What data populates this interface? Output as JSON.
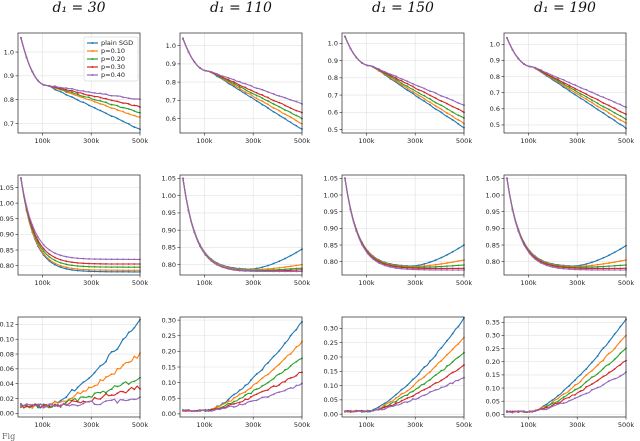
{
  "figure": {
    "column_titles": [
      "d₁ = 30",
      "d₁ = 110",
      "d₁ = 150",
      "d₁ = 190"
    ],
    "x_tick_labels": [
      "100k",
      "300k",
      "500k"
    ],
    "caption_fragment": "Fig",
    "legend": {
      "entries": [
        "plain SGD",
        "p=0.10",
        "p=0.20",
        "p=0.30",
        "p=0.40"
      ],
      "colors": [
        "#1f77b4",
        "#ff7f0e",
        "#2ca02c",
        "#d62728",
        "#9467bd"
      ]
    }
  },
  "chart_data": [
    {
      "type": "line",
      "row": 1,
      "col": 1,
      "title": "d₁ = 30",
      "x": [
        0,
        500000
      ],
      "ylim": [
        0.66,
        1.08
      ],
      "yticks": [
        0.7,
        0.8,
        0.9,
        1.0
      ],
      "xticks": [
        100000,
        300000,
        500000
      ],
      "legend": "top-right",
      "series": [
        {
          "name": "plain SGD",
          "end": 0.675
        },
        {
          "name": "p=0.10",
          "end": 0.725
        },
        {
          "name": "p=0.20",
          "end": 0.745
        },
        {
          "name": "p=0.30",
          "end": 0.77
        },
        {
          "name": "p=0.40",
          "end": 0.8
        }
      ],
      "start": 1.06,
      "knee": 0.86
    },
    {
      "type": "line",
      "row": 1,
      "col": 2,
      "title": "d₁ = 110",
      "x": [
        0,
        500000
      ],
      "ylim": [
        0.52,
        1.07
      ],
      "yticks": [
        0.6,
        0.7,
        0.8,
        0.9,
        1.0
      ],
      "xticks": [
        100000,
        300000,
        500000
      ],
      "series": [
        {
          "name": "plain SGD",
          "end": 0.54
        },
        {
          "name": "p=0.10",
          "end": 0.57
        },
        {
          "name": "p=0.20",
          "end": 0.6
        },
        {
          "name": "p=0.30",
          "end": 0.63
        },
        {
          "name": "p=0.40",
          "end": 0.68
        }
      ],
      "start": 1.04,
      "knee": 0.86
    },
    {
      "type": "line",
      "row": 1,
      "col": 3,
      "title": "d₁ = 150",
      "x": [
        0,
        500000
      ],
      "ylim": [
        0.48,
        1.06
      ],
      "yticks": [
        0.5,
        0.6,
        0.7,
        0.8,
        0.9,
        1.0
      ],
      "xticks": [
        100000,
        300000,
        500000
      ],
      "series": [
        {
          "name": "plain SGD",
          "end": 0.51
        },
        {
          "name": "p=0.10",
          "end": 0.535
        },
        {
          "name": "p=0.20",
          "end": 0.565
        },
        {
          "name": "p=0.30",
          "end": 0.6
        },
        {
          "name": "p=0.40",
          "end": 0.64
        }
      ],
      "start": 1.04,
      "knee": 0.87
    },
    {
      "type": "line",
      "row": 1,
      "col": 4,
      "title": "d₁ = 190",
      "x": [
        0,
        500000
      ],
      "ylim": [
        0.45,
        1.07
      ],
      "yticks": [
        0.5,
        0.6,
        0.7,
        0.8,
        0.9,
        1.0
      ],
      "xticks": [
        100000,
        300000,
        500000
      ],
      "series": [
        {
          "name": "plain SGD",
          "end": 0.48
        },
        {
          "name": "p=0.10",
          "end": 0.51
        },
        {
          "name": "p=0.20",
          "end": 0.535
        },
        {
          "name": "p=0.30",
          "end": 0.565
        },
        {
          "name": "p=0.40",
          "end": 0.61
        }
      ],
      "start": 1.04,
      "knee": 0.86
    },
    {
      "type": "line",
      "row": 2,
      "col": 1,
      "x": [
        0,
        500000
      ],
      "ylim": [
        0.77,
        1.09
      ],
      "yticks": [
        0.8,
        0.85,
        0.9,
        0.95,
        1.0,
        1.05
      ],
      "xticks": [
        100000,
        300000,
        500000
      ],
      "series": [
        {
          "name": "plain SGD",
          "end": 0.78,
          "bump": 0
        },
        {
          "name": "p=0.10",
          "end": 0.785,
          "bump": 0
        },
        {
          "name": "p=0.20",
          "end": 0.795,
          "bump": 0
        },
        {
          "name": "p=0.30",
          "end": 0.805,
          "bump": 0
        },
        {
          "name": "p=0.40",
          "end": 0.82,
          "bump": 0
        }
      ],
      "start": 1.08
    },
    {
      "type": "line",
      "row": 2,
      "col": 2,
      "x": [
        0,
        500000
      ],
      "ylim": [
        0.77,
        1.06
      ],
      "yticks": [
        0.8,
        0.85,
        0.9,
        0.95,
        1.0,
        1.05
      ],
      "xticks": [
        100000,
        300000,
        500000
      ],
      "series": [
        {
          "name": "plain SGD",
          "end": 0.845,
          "bump": 1
        },
        {
          "name": "p=0.10",
          "end": 0.8,
          "bump": 1
        },
        {
          "name": "p=0.20",
          "end": 0.79,
          "bump": 1
        },
        {
          "name": "p=0.30",
          "end": 0.785,
          "bump": 1
        },
        {
          "name": "p=0.40",
          "end": 0.78,
          "bump": 0
        }
      ],
      "start": 1.05
    },
    {
      "type": "line",
      "row": 2,
      "col": 3,
      "x": [
        0,
        500000
      ],
      "ylim": [
        0.76,
        1.06
      ],
      "yticks": [
        0.8,
        0.85,
        0.9,
        0.95,
        1.0,
        1.05
      ],
      "xticks": [
        100000,
        300000,
        500000
      ],
      "series": [
        {
          "name": "plain SGD",
          "end": 0.85,
          "bump": 1
        },
        {
          "name": "p=0.10",
          "end": 0.805,
          "bump": 1
        },
        {
          "name": "p=0.20",
          "end": 0.79,
          "bump": 1
        },
        {
          "name": "p=0.30",
          "end": 0.78,
          "bump": 1
        },
        {
          "name": "p=0.40",
          "end": 0.775,
          "bump": 0
        }
      ],
      "start": 1.05
    },
    {
      "type": "line",
      "row": 2,
      "col": 4,
      "x": [
        0,
        500000
      ],
      "ylim": [
        0.76,
        1.06
      ],
      "yticks": [
        0.8,
        0.85,
        0.9,
        0.95,
        1.0,
        1.05
      ],
      "xticks": [
        100000,
        300000,
        500000
      ],
      "series": [
        {
          "name": "plain SGD",
          "end": 0.848,
          "bump": 1
        },
        {
          "name": "p=0.10",
          "end": 0.805,
          "bump": 1
        },
        {
          "name": "p=0.20",
          "end": 0.79,
          "bump": 1
        },
        {
          "name": "p=0.30",
          "end": 0.78,
          "bump": 1
        },
        {
          "name": "p=0.40",
          "end": 0.775,
          "bump": 0
        }
      ],
      "start": 1.05
    },
    {
      "type": "line",
      "row": 3,
      "col": 1,
      "x": [
        0,
        500000
      ],
      "ylim": [
        -0.005,
        0.13
      ],
      "yticks": [
        0.0,
        0.02,
        0.04,
        0.06,
        0.08,
        0.1,
        0.12
      ],
      "xticks": [
        100000,
        300000,
        500000
      ],
      "series": [
        {
          "name": "plain SGD",
          "end": 0.125
        },
        {
          "name": "p=0.10",
          "end": 0.08
        },
        {
          "name": "p=0.20",
          "end": 0.048
        },
        {
          "name": "p=0.30",
          "end": 0.035
        },
        {
          "name": "p=0.40",
          "end": 0.02
        }
      ],
      "start": 0.01
    },
    {
      "type": "line",
      "row": 3,
      "col": 2,
      "x": [
        0,
        500000
      ],
      "ylim": [
        -0.01,
        0.31
      ],
      "yticks": [
        0.0,
        0.05,
        0.1,
        0.15,
        0.2,
        0.25,
        0.3
      ],
      "xticks": [
        100000,
        300000,
        500000
      ],
      "series": [
        {
          "name": "plain SGD",
          "end": 0.295
        },
        {
          "name": "p=0.10",
          "end": 0.23
        },
        {
          "name": "p=0.20",
          "end": 0.18
        },
        {
          "name": "p=0.30",
          "end": 0.135
        },
        {
          "name": "p=0.40",
          "end": 0.095
        }
      ],
      "start": 0.01
    },
    {
      "type": "line",
      "row": 3,
      "col": 3,
      "x": [
        0,
        500000
      ],
      "ylim": [
        -0.01,
        0.34
      ],
      "yticks": [
        0.0,
        0.05,
        0.1,
        0.15,
        0.2,
        0.25,
        0.3
      ],
      "xticks": [
        100000,
        300000,
        500000
      ],
      "series": [
        {
          "name": "plain SGD",
          "end": 0.335
        },
        {
          "name": "p=0.10",
          "end": 0.27
        },
        {
          "name": "p=0.20",
          "end": 0.215
        },
        {
          "name": "p=0.30",
          "end": 0.17
        },
        {
          "name": "p=0.40",
          "end": 0.13
        }
      ],
      "start": 0.01
    },
    {
      "type": "line",
      "row": 3,
      "col": 4,
      "x": [
        0,
        500000
      ],
      "ylim": [
        -0.01,
        0.37
      ],
      "yticks": [
        0.0,
        0.05,
        0.1,
        0.15,
        0.2,
        0.25,
        0.3,
        0.35
      ],
      "xticks": [
        100000,
        300000,
        500000
      ],
      "series": [
        {
          "name": "plain SGD",
          "end": 0.36
        },
        {
          "name": "p=0.10",
          "end": 0.3
        },
        {
          "name": "p=0.20",
          "end": 0.25
        },
        {
          "name": "p=0.30",
          "end": 0.205
        },
        {
          "name": "p=0.40",
          "end": 0.16
        }
      ],
      "start": 0.01
    }
  ]
}
